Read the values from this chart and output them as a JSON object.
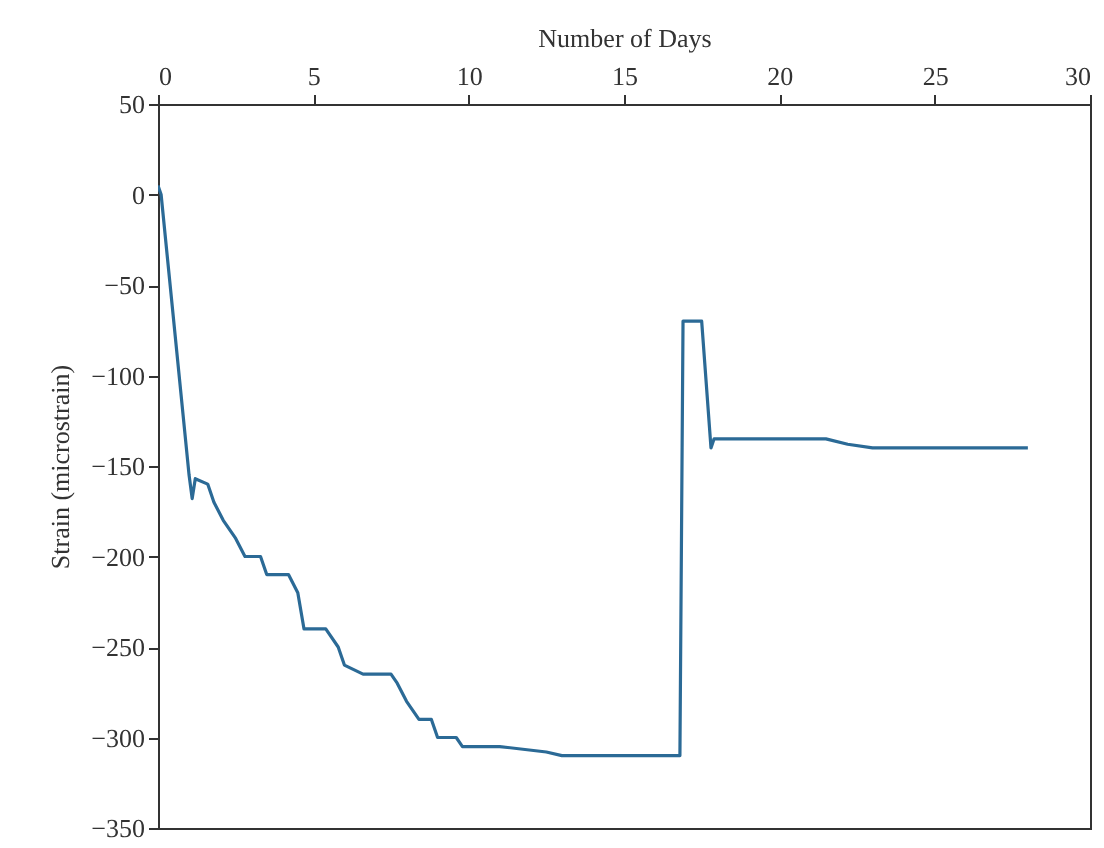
{
  "chart_data": {
    "type": "line",
    "xlabel": "Number of Days",
    "ylabel": "Strain (microstrain)",
    "xlim": [
      0,
      30
    ],
    "xticks": [
      0,
      5,
      10,
      15,
      20,
      25,
      30
    ],
    "ylim": [
      -350,
      50
    ],
    "yticks": [
      -350,
      -300,
      -250,
      -200,
      -150,
      -100,
      -50,
      0,
      50
    ],
    "x": [
      0,
      0.1,
      1.0,
      1.1,
      1.2,
      1.6,
      1.8,
      2.1,
      2.5,
      2.8,
      3.3,
      3.5,
      4.2,
      4.5,
      4.7,
      5.4,
      5.8,
      6.0,
      6.6,
      7.5,
      7.7,
      8.0,
      8.4,
      8.8,
      9.0,
      9.6,
      9.8,
      11.0,
      12.5,
      13.0,
      16.8,
      16.9,
      17.5,
      17.8,
      17.9,
      21.5,
      22.2,
      23.0,
      28.0
    ],
    "series": [
      {
        "color": "#2b6a96",
        "values": [
          5,
          0,
          -155,
          -168,
          -157,
          -160,
          -170,
          -180,
          -190,
          -200,
          -200,
          -210,
          -210,
          -220,
          -240,
          -240,
          -250,
          -260,
          -265,
          -265,
          -270,
          -280,
          -290,
          -290,
          -300,
          -300,
          -305,
          -305,
          -308,
          -310,
          -310,
          -70,
          -70,
          -140,
          -135,
          -135,
          -138,
          -140,
          -140
        ]
      }
    ],
    "grid": false
  }
}
